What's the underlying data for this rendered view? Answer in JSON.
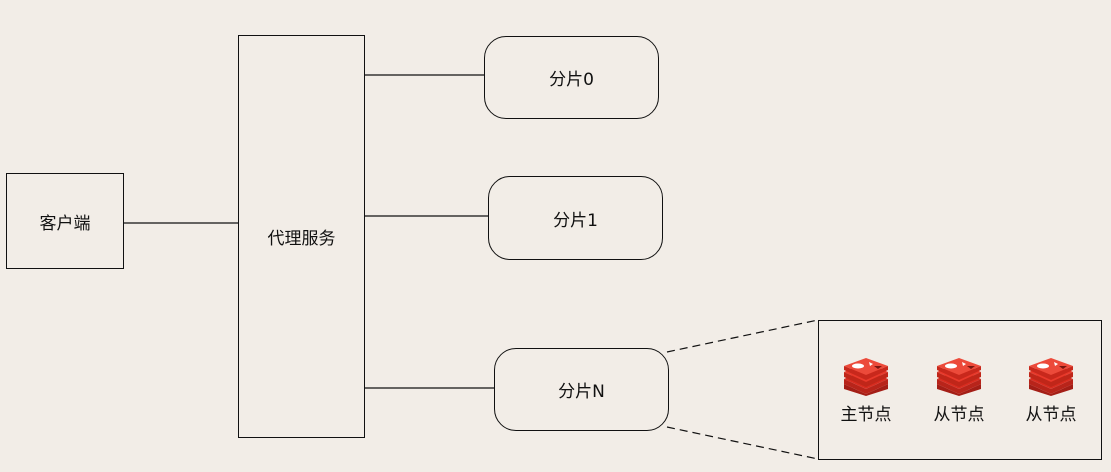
{
  "client": {
    "label": "客户端"
  },
  "proxy": {
    "label": "代理服务"
  },
  "shards": [
    {
      "label": "分片0"
    },
    {
      "label": "分片1"
    },
    {
      "label": "分片N"
    }
  ],
  "detail": {
    "nodes": [
      {
        "label": "主节点",
        "icon": "redis-icon"
      },
      {
        "label": "从节点",
        "icon": "redis-icon"
      },
      {
        "label": "从节点",
        "icon": "redis-icon"
      }
    ]
  },
  "colors": {
    "background": "#f2ede7",
    "stroke": "#111111",
    "redis_red": "#d82c20"
  }
}
